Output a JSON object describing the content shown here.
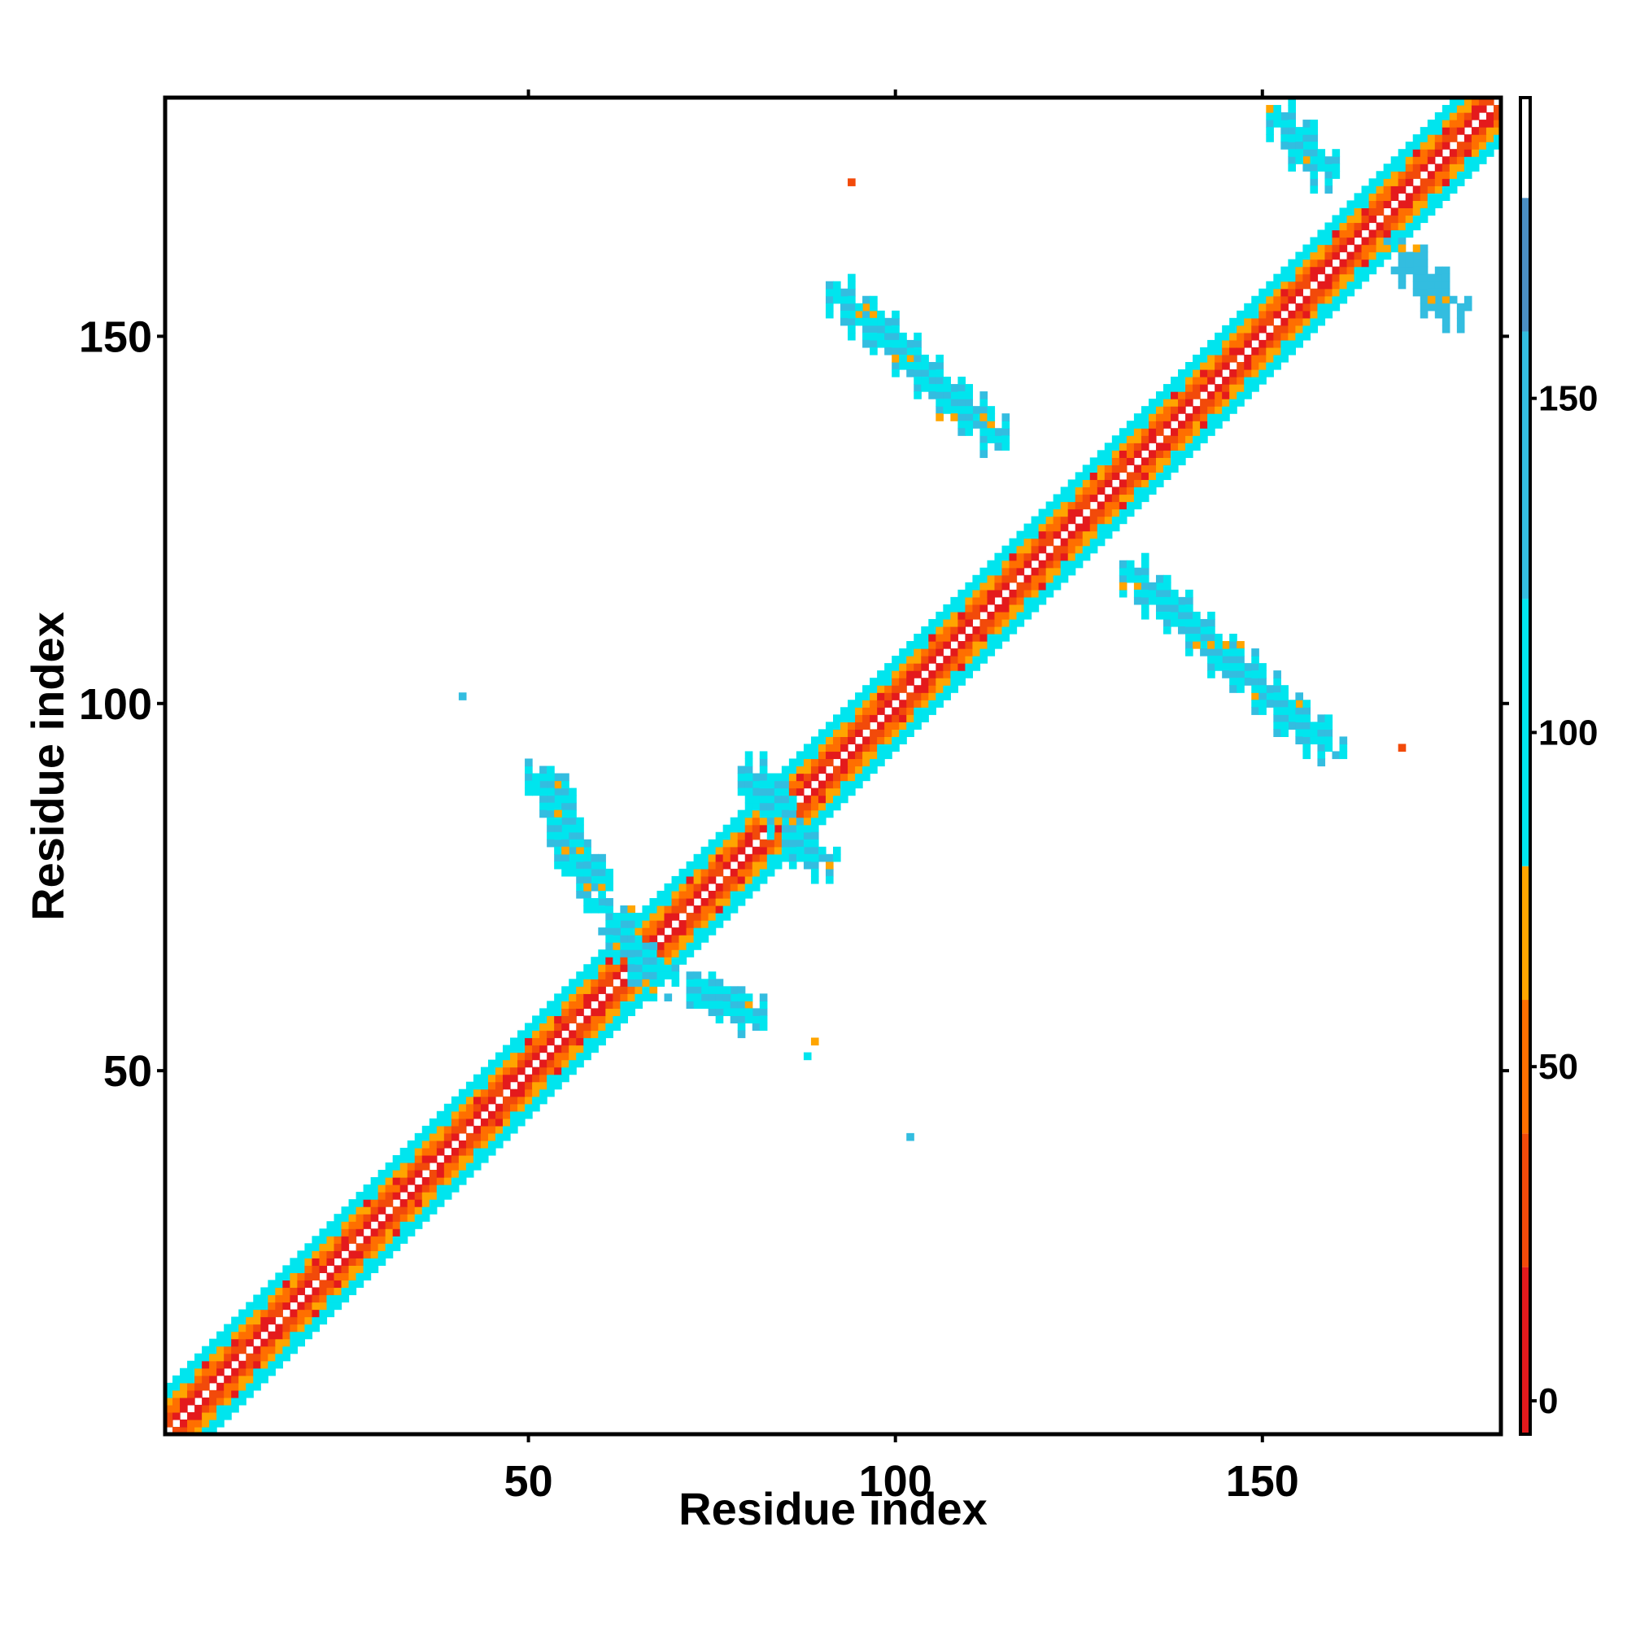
{
  "chart_data": {
    "type": "heatmap",
    "title": "",
    "xlabel": "Residue index",
    "ylabel": "Residue index",
    "n_residues": 182,
    "xlim": [
      0.5,
      182.5
    ],
    "ylim": [
      0.5,
      182.5
    ],
    "x_ticks": [
      50,
      100,
      150
    ],
    "y_ticks": [
      50,
      100,
      150
    ],
    "x_tick_labels": [
      "50",
      "100",
      "150"
    ],
    "y_tick_labels": [
      "50",
      "100",
      "150"
    ],
    "colorbar": {
      "ticks": [
        0,
        50,
        100,
        150
      ],
      "tick_labels": [
        "0",
        "50",
        "100",
        "150"
      ],
      "range": [
        -5,
        195
      ],
      "bands": [
        {
          "from": -5,
          "to": 20,
          "color": "#e41a1c"
        },
        {
          "from": 20,
          "to": 40,
          "color": "#f24a0a"
        },
        {
          "from": 40,
          "to": 60,
          "color": "#ff6f00"
        },
        {
          "from": 60,
          "to": 80,
          "color": "#ffa500"
        },
        {
          "from": 80,
          "to": 120,
          "color": "#00e5ee"
        },
        {
          "from": 120,
          "to": 160,
          "color": "#33bde0"
        },
        {
          "from": 160,
          "to": 180,
          "color": "#4a8ec2"
        },
        {
          "from": 180,
          "to": 195,
          "color": "#ffffff"
        }
      ]
    },
    "diagonal_band": {
      "from": 1,
      "to": 182,
      "half_width": 6,
      "value_by_offset": {
        "1": 10,
        "2": 30,
        "3": 50,
        "4": 70,
        "5": 100,
        "6": 100
      }
    },
    "contact_patches": [
      {
        "i": [
          92,
          114
        ],
        "j": [
          156,
          136
        ],
        "value": 100
      },
      {
        "i": [
          132,
          159
        ],
        "j": [
          118,
          94
        ],
        "value": 100
      },
      {
        "i": [
          152,
          159
        ],
        "j": [
          180,
          172
        ],
        "value": 110
      },
      {
        "i": [
          169,
          176
        ],
        "j": [
          161,
          153
        ],
        "value": 120
      },
      {
        "i": [
          80,
          90
        ],
        "j": [
          91,
          78
        ],
        "value": 100
      },
      {
        "i": [
          52,
          59
        ],
        "j": [
          90,
          74
        ],
        "value": 110
      },
      {
        "i": [
          72,
          81
        ],
        "j": [
          62,
          57
        ],
        "value": 110
      },
      {
        "i": [
          61,
          67
        ],
        "j": [
          71,
          62
        ],
        "value": 100
      }
    ],
    "contact_points": [
      {
        "x": 94,
        "y": 171,
        "value": 30
      },
      {
        "x": 169,
        "y": 94,
        "value": 30
      },
      {
        "x": 41,
        "y": 101,
        "value": 120
      },
      {
        "x": 102,
        "y": 41,
        "value": 120
      },
      {
        "x": 88,
        "y": 52,
        "value": 110
      },
      {
        "x": 89,
        "y": 54,
        "value": 70
      }
    ]
  }
}
